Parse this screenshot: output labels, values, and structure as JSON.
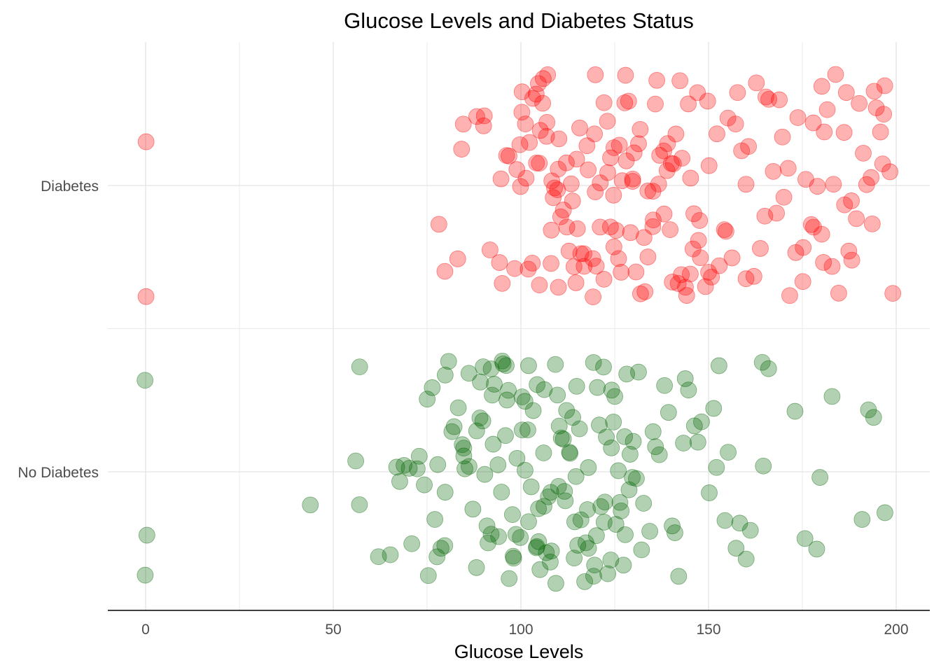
{
  "chart_data": {
    "type": "scatter",
    "title": "Glucose Levels and Diabetes Status",
    "xlabel": "Glucose Levels",
    "ylabel": "",
    "xlim": [
      -10,
      210
    ],
    "xticks": [
      0,
      50,
      100,
      150,
      200
    ],
    "categories": [
      "No Diabetes",
      "Diabetes"
    ],
    "grid": true,
    "legend": "none",
    "point_opacity": 0.3,
    "series": [
      {
        "category": "Diabetes",
        "color": "#ff0000",
        "values": [
          0,
          0,
          78,
          80,
          83,
          84,
          88,
          90,
          92,
          94,
          95,
          96,
          97,
          98,
          99,
          100,
          100,
          100,
          101,
          101,
          102,
          102,
          103,
          103,
          104,
          104,
          105,
          105,
          105,
          106,
          106,
          107,
          107,
          107,
          108,
          108,
          108,
          109,
          109,
          110,
          110,
          110,
          111,
          111,
          112,
          112,
          113,
          113,
          114,
          114,
          115,
          115,
          116,
          116,
          117,
          117,
          118,
          118,
          119,
          119,
          120,
          120,
          120,
          121,
          121,
          122,
          122,
          123,
          123,
          124,
          124,
          125,
          125,
          125,
          126,
          126,
          127,
          127,
          128,
          128,
          128,
          129,
          129,
          130,
          130,
          131,
          131,
          132,
          132,
          133,
          133,
          134,
          134,
          135,
          135,
          136,
          136,
          137,
          137,
          138,
          138,
          139,
          139,
          140,
          140,
          141,
          141,
          142,
          142,
          143,
          143,
          144,
          144,
          145,
          145,
          146,
          146,
          147,
          147,
          148,
          148,
          149,
          150,
          150,
          151,
          152,
          153,
          154,
          155,
          156,
          157,
          158,
          159,
          160,
          161,
          162,
          163,
          164,
          165,
          166,
          167,
          168,
          169,
          170,
          171,
          172,
          173,
          174,
          175,
          176,
          177,
          178,
          179,
          180,
          181,
          182,
          183,
          184,
          185,
          186,
          187,
          188,
          189,
          190,
          191,
          192,
          193,
          194,
          195,
          196,
          197,
          198,
          199,
          175,
          178,
          180,
          181,
          183,
          186,
          187,
          188,
          194,
          196,
          197,
          170,
          165,
          160,
          155,
          150,
          145,
          140,
          135,
          130,
          125,
          120,
          115,
          110,
          105,
          100,
          95,
          90,
          85
        ]
      },
      {
        "category": "No Diabetes",
        "color": "#006400",
        "values": [
          0,
          0,
          0,
          44,
          56,
          57,
          57,
          62,
          65,
          67,
          68,
          69,
          70,
          71,
          72,
          73,
          74,
          75,
          76,
          77,
          78,
          79,
          80,
          80,
          81,
          82,
          83,
          84,
          85,
          85,
          86,
          87,
          88,
          88,
          89,
          89,
          90,
          90,
          91,
          91,
          92,
          92,
          93,
          93,
          94,
          94,
          95,
          95,
          96,
          96,
          97,
          97,
          98,
          98,
          99,
          99,
          100,
          100,
          101,
          101,
          102,
          102,
          103,
          103,
          104,
          104,
          105,
          105,
          106,
          106,
          107,
          107,
          108,
          108,
          109,
          109,
          110,
          110,
          111,
          111,
          112,
          112,
          113,
          113,
          114,
          114,
          115,
          115,
          116,
          116,
          117,
          117,
          118,
          118,
          119,
          119,
          120,
          120,
          121,
          121,
          122,
          122,
          123,
          123,
          124,
          124,
          125,
          125,
          126,
          126,
          127,
          127,
          128,
          128,
          129,
          129,
          130,
          130,
          131,
          131,
          132,
          133,
          134,
          135,
          136,
          137,
          138,
          139,
          140,
          141,
          142,
          143,
          144,
          145,
          146,
          147,
          148,
          150,
          151,
          152,
          153,
          154,
          155,
          157,
          158,
          160,
          161,
          164,
          165,
          166,
          173,
          176,
          179,
          180,
          183,
          191,
          193,
          194,
          197,
          75,
          80,
          85,
          90,
          95,
          100,
          105,
          110,
          115,
          120,
          125,
          78,
          82,
          86,
          92,
          98,
          104,
          108,
          112,
          118,
          124,
          128,
          96,
          102,
          106,
          114,
          122
        ]
      }
    ]
  }
}
